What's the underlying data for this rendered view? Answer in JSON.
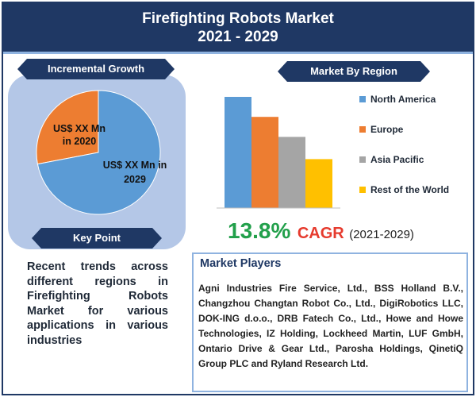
{
  "header": {
    "title_line1": "Firefighting Robots Market",
    "title_line2": "2021 - 2029"
  },
  "incremental": {
    "ribbon": "Incremental Growth",
    "label_small": "US$ XX Mn in 2020",
    "label_small_line1": "US$ XX Mn",
    "label_small_line2": "in 2020",
    "label_large_line1": "US$ XX Mn in",
    "label_large_line2": "2029"
  },
  "keypoint": {
    "ribbon": "Key Point",
    "text": "Recent trends across different regions in Firefighting Robots Market for various applications in various industries"
  },
  "region": {
    "ribbon": "Market By Region"
  },
  "cagr": {
    "value": "13.8%",
    "label": "CAGR",
    "years": "(2021-2029)"
  },
  "players": {
    "title": "Market Players",
    "text": "Agni Industries Fire Service, Ltd., BSS Holland B.V., Changzhou Changtan Robot Co., Ltd., DigiRobotics LLC, DOK-ING d.o.o., DRB Fatech Co., Ltd., Howe and Howe Technologies, IZ Holding, Lockheed Martin, LUF GmbH, Ontario Drive & Gear Ltd., Parosha Holdings, QinetiQ Group PLC and Ryland Research Ltd."
  },
  "chart_data": [
    {
      "type": "pie",
      "title": "",
      "slices": [
        {
          "label": "US$ XX Mn in 2020",
          "value": 28,
          "color": "#ed7d31"
        },
        {
          "label": "US$ XX Mn in 2029",
          "value": 72,
          "color": "#5b9bd5"
        }
      ]
    },
    {
      "type": "bar",
      "title": "",
      "categories": [
        "North America",
        "Europe",
        "Asia Pacific",
        "Rest of the World"
      ],
      "values": [
        100,
        82,
        64,
        44
      ],
      "colors": [
        "#5b9bd5",
        "#ed7d31",
        "#a5a5a5",
        "#ffc000"
      ],
      "ylim": [
        0,
        100
      ],
      "grid": false,
      "axes_labels": false,
      "legend": "right"
    }
  ]
}
